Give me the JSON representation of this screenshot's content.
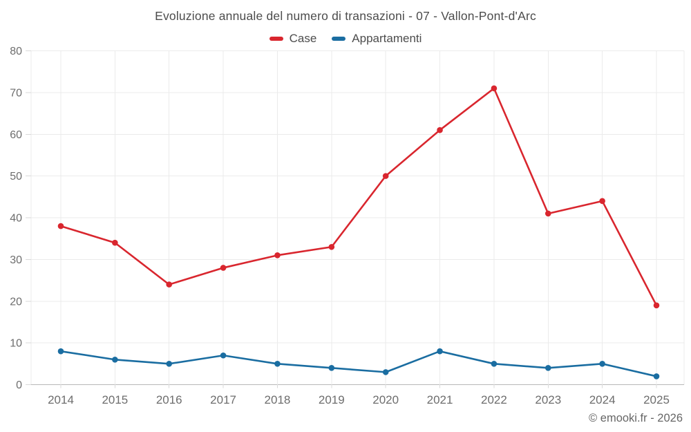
{
  "title": "Evoluzione annuale del numero di transazioni - 07 - Vallon-Pont-d'Arc",
  "legend": [
    {
      "label": "Case",
      "color": "#d9262e"
    },
    {
      "label": "Appartamenti",
      "color": "#1a6da1"
    }
  ],
  "footer": "© emooki.fr - 2026",
  "colors": {
    "grid": "#ebebeb",
    "axis_line": "#b7b7b7",
    "tick": "#d9d9d9",
    "axis_text": "#6d6d6d"
  },
  "chart_data": {
    "type": "line",
    "title": "Evoluzione annuale del numero di transazioni - 07 - Vallon-Pont-d'Arc",
    "categories": [
      "2014",
      "2015",
      "2016",
      "2017",
      "2018",
      "2019",
      "2020",
      "2021",
      "2022",
      "2023",
      "2024",
      "2025"
    ],
    "series": [
      {
        "name": "Case",
        "color": "#d9262e",
        "values": [
          38,
          34,
          24,
          28,
          31,
          33,
          50,
          61,
          71,
          41,
          44,
          19
        ]
      },
      {
        "name": "Appartamenti",
        "color": "#1a6da1",
        "values": [
          8,
          6,
          5,
          7,
          5,
          4,
          3,
          8,
          5,
          4,
          5,
          2
        ]
      }
    ],
    "xlabel": "",
    "ylabel": "",
    "ylim": [
      0,
      80
    ],
    "yticks": [
      0,
      10,
      20,
      30,
      40,
      50,
      60,
      70,
      80
    ],
    "grid": true,
    "legend_position": "top"
  }
}
